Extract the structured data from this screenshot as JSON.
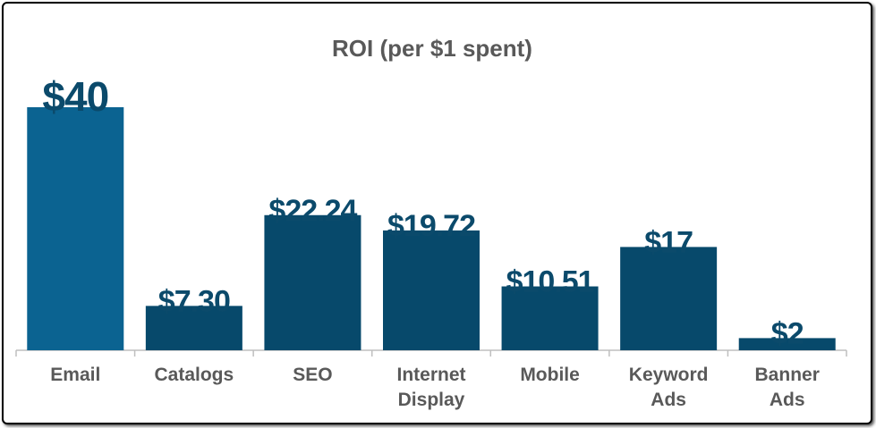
{
  "chart_data": {
    "type": "bar",
    "title": "ROI (per $1 spent)",
    "categories": [
      "Email",
      "Catalogs",
      "SEO",
      "Internet Display",
      "Mobile",
      "Keyword Ads",
      "Banner Ads"
    ],
    "values": [
      40,
      7.3,
      22.24,
      19.72,
      10.51,
      17,
      2
    ],
    "value_labels": [
      "$40",
      "$7.30",
      "$22.24",
      "$19.72",
      "$10.51",
      "$17",
      "$2"
    ],
    "colors": [
      "#0b6391",
      "#07496b",
      "#07496b",
      "#07496b",
      "#07496b",
      "#07496b",
      "#07496b"
    ]
  }
}
